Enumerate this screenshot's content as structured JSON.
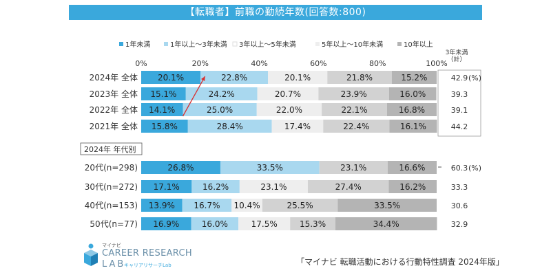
{
  "title": "【転職者】前職の勤続年数(回答数:800)",
  "footer_note": "「マイナビ 転職活動における行動特性調査 2024年版」",
  "logo": {
    "small": "マイナビ",
    "main": "CAREER RESEARCH",
    "lab": "LAB",
    "sub": "キャリアリサーチLab"
  },
  "colors": {
    "bar_colors": [
      "#3aa8dc",
      "#a9d8ef",
      "#eeeeee",
      "#d2d2d2",
      "#b4b4b4"
    ],
    "legend_colors": [
      "#3aa8dc",
      "#a9d8ef",
      "#ffffff",
      "#eeeeee",
      "#b4b4b4"
    ],
    "arrow": "#d83030"
  },
  "chart_data": {
    "type": "bar",
    "orientation": "horizontal",
    "stacked": true,
    "xlim": [
      0,
      100
    ],
    "x_ticks": [
      "0%",
      "20%",
      "40%",
      "60%",
      "80%",
      "100%"
    ],
    "legend_position": "top",
    "series_names": [
      "1年未満",
      "1年以上～3年未満",
      "3年以上～5年未満",
      "5年以上～10年未満",
      "10年以上"
    ],
    "side_header": "3年未満\n（計）",
    "section_label": "2024年 年代別",
    "groups": [
      {
        "rows": [
          {
            "label": "2024年 全体",
            "values": [
              20.1,
              22.8,
              20.1,
              21.8,
              15.2
            ],
            "total": "42.9",
            "unit": "(%)"
          },
          {
            "label": "2023年 全体",
            "values": [
              15.1,
              24.2,
              20.7,
              23.9,
              16.0
            ],
            "total": "39.3"
          },
          {
            "label": "2022年 全体",
            "values": [
              14.1,
              25.0,
              22.0,
              22.1,
              16.8
            ],
            "total": "39.1"
          },
          {
            "label": "2021年 全体",
            "values": [
              15.8,
              28.4,
              17.4,
              22.4,
              16.1
            ],
            "total": "44.2"
          }
        ]
      },
      {
        "rows": [
          {
            "label": "20代(n=298)",
            "values": [
              26.8,
              33.5,
              0.0,
              23.1,
              16.6
            ],
            "total": "60.3",
            "unit": "(%)"
          },
          {
            "label": "30代(n=272)",
            "values": [
              17.1,
              16.2,
              23.1,
              27.4,
              16.2
            ],
            "total": "33.3"
          },
          {
            "label": "40代(n=153)",
            "values": [
              13.9,
              16.7,
              10.4,
              25.5,
              33.5
            ],
            "total": "30.6"
          },
          {
            "label": "50代(n=77)",
            "values": [
              16.9,
              16.0,
              17.5,
              15.3,
              34.4
            ],
            "total": "32.9"
          }
        ]
      }
    ]
  }
}
